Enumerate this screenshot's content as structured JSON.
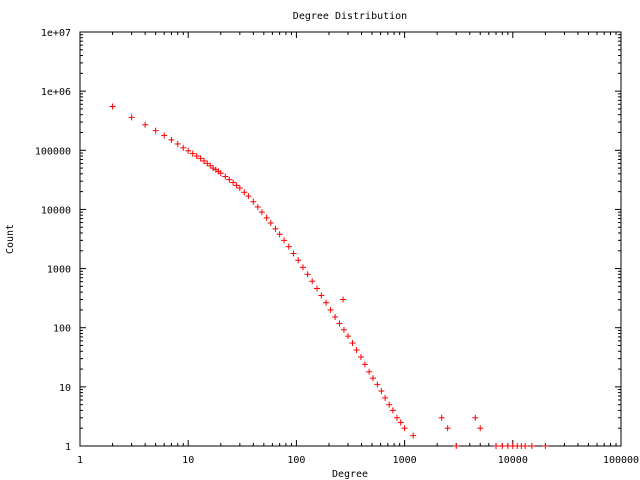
{
  "chart_data": {
    "type": "scatter",
    "title": "Degree Distribution",
    "xlabel": "Degree",
    "ylabel": "Count",
    "x_scale": "log",
    "y_scale": "log",
    "xlim": [
      1,
      100000
    ],
    "ylim": [
      1,
      10000000
    ],
    "x_ticks": [
      {
        "value": 1,
        "label": "1"
      },
      {
        "value": 10,
        "label": "10"
      },
      {
        "value": 100,
        "label": "100"
      },
      {
        "value": 1000,
        "label": "1000"
      },
      {
        "value": 10000,
        "label": "10000"
      },
      {
        "value": 100000,
        "label": "100000"
      }
    ],
    "y_ticks": [
      {
        "value": 1,
        "label": "1"
      },
      {
        "value": 10,
        "label": "10"
      },
      {
        "value": 100,
        "label": "100"
      },
      {
        "value": 1000,
        "label": "1000"
      },
      {
        "value": 10000,
        "label": "10000"
      },
      {
        "value": 100000,
        "label": "100000"
      },
      {
        "value": 1000000,
        "label": "1e+06"
      },
      {
        "value": 10000000,
        "label": "1e+07"
      }
    ],
    "grid": false,
    "marker": "+",
    "color": "#ff0000",
    "series": [
      {
        "points": [
          [
            2,
            550000
          ],
          [
            3,
            360000
          ],
          [
            4,
            270000
          ],
          [
            5,
            215000
          ],
          [
            6,
            178000
          ],
          [
            7,
            150000
          ],
          [
            8,
            128000
          ],
          [
            9,
            110000
          ],
          [
            10,
            98000
          ],
          [
            11,
            88000
          ],
          [
            12,
            80000
          ],
          [
            13,
            73000
          ],
          [
            14,
            66000
          ],
          [
            15,
            60000
          ],
          [
            16,
            55000
          ],
          [
            17,
            50000
          ],
          [
            18,
            47000
          ],
          [
            19,
            44000
          ],
          [
            20,
            41000
          ],
          [
            22,
            36000
          ],
          [
            24,
            32000
          ],
          [
            26,
            28500
          ],
          [
            28,
            25500
          ],
          [
            30,
            23000
          ],
          [
            33,
            19500
          ],
          [
            36,
            16800
          ],
          [
            40,
            13500
          ],
          [
            44,
            11000
          ],
          [
            48,
            9000
          ],
          [
            53,
            7200
          ],
          [
            58,
            5900
          ],
          [
            64,
            4700
          ],
          [
            70,
            3800
          ],
          [
            77,
            3000
          ],
          [
            85,
            2350
          ],
          [
            94,
            1800
          ],
          [
            104,
            1380
          ],
          [
            115,
            1050
          ],
          [
            127,
            800
          ],
          [
            140,
            610
          ],
          [
            155,
            460
          ],
          [
            170,
            350
          ],
          [
            188,
            265
          ],
          [
            207,
            200
          ],
          [
            228,
            152
          ],
          [
            250,
            118
          ],
          [
            270,
            300
          ],
          [
            275,
            92
          ],
          [
            300,
            72
          ],
          [
            330,
            55
          ],
          [
            360,
            42
          ],
          [
            395,
            32
          ],
          [
            430,
            24
          ],
          [
            470,
            18
          ],
          [
            510,
            14
          ],
          [
            560,
            11
          ],
          [
            610,
            8.5
          ],
          [
            660,
            6.5
          ],
          [
            720,
            5
          ],
          [
            780,
            4
          ],
          [
            850,
            3
          ],
          [
            920,
            2.5
          ],
          [
            1000,
            2
          ],
          [
            1200,
            1.5
          ],
          [
            2200,
            3
          ],
          [
            2500,
            2
          ],
          [
            4500,
            3
          ],
          [
            3000,
            1
          ],
          [
            5000,
            2
          ],
          [
            7000,
            1
          ],
          [
            8000,
            1
          ],
          [
            9000,
            1
          ],
          [
            10000,
            1
          ],
          [
            11000,
            1
          ],
          [
            12000,
            1
          ],
          [
            13000,
            1
          ],
          [
            15000,
            1
          ],
          [
            20000,
            1
          ]
        ]
      }
    ]
  }
}
